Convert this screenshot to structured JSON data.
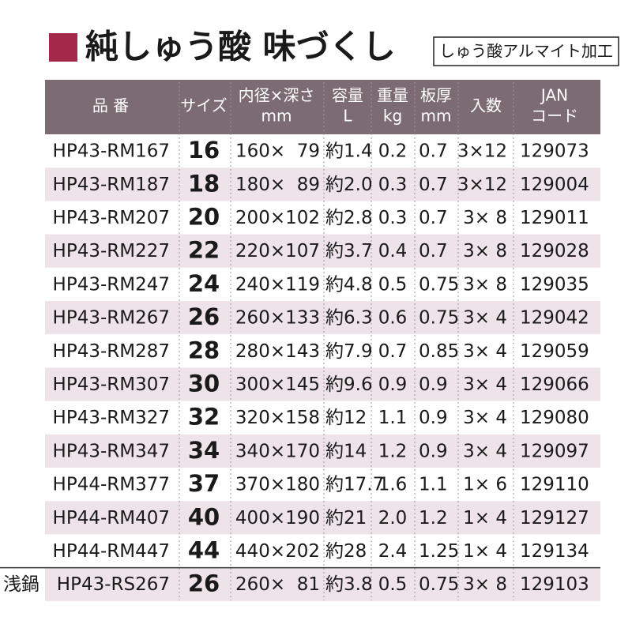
{
  "header": {
    "title": "純しゅう酸 味づくし",
    "badge": "しゅう酸アルマイト加工"
  },
  "table": {
    "header": [
      [
        "品 番"
      ],
      [
        "サイズ"
      ],
      [
        "内径×深さ",
        "mm"
      ],
      [
        "容量",
        "L"
      ],
      [
        "重量",
        "kg"
      ],
      [
        "板厚",
        "mm"
      ],
      [
        "入数"
      ],
      [
        "JAN",
        "コード"
      ]
    ],
    "rows": [
      [
        "HP43-RM167",
        "16",
        "160×  79",
        "約1.4",
        "0.2",
        "0.7",
        "3×12",
        "129073"
      ],
      [
        "HP43-RM187",
        "18",
        "180×  89",
        "約2.0",
        "0.3",
        "0.7",
        "3×12",
        "129004"
      ],
      [
        "HP43-RM207",
        "20",
        "200×102",
        "約2.8",
        "0.3",
        "0.7",
        "3× 8",
        "129011"
      ],
      [
        "HP43-RM227",
        "22",
        "220×107",
        "約3.7",
        "0.4",
        "0.7",
        "3× 8",
        "129028"
      ],
      [
        "HP43-RM247",
        "24",
        "240×119",
        "約4.8",
        "0.5",
        "0.75",
        "3× 8",
        "129035"
      ],
      [
        "HP43-RM267",
        "26",
        "260×133",
        "約6.3",
        "0.6",
        "0.75",
        "3× 4",
        "129042"
      ],
      [
        "HP43-RM287",
        "28",
        "280×143",
        "約7.9",
        "0.7",
        "0.85",
        "3× 4",
        "129059"
      ],
      [
        "HP43-RM307",
        "30",
        "300×145",
        "約9.6",
        "0.9",
        "0.9",
        "3× 4",
        "129066"
      ],
      [
        "HP43-RM327",
        "32",
        "320×158",
        "約12",
        "1.1",
        "0.9",
        "3× 4",
        "129080"
      ],
      [
        "HP43-RM347",
        "34",
        "340×170",
        "約14",
        "1.2",
        "0.9",
        "3× 4",
        "129097"
      ],
      [
        "HP44-RM377",
        "37",
        "370×180",
        "約17.7",
        "1.6",
        "1.1",
        "1× 6",
        "129110"
      ],
      [
        "HP44-RM407",
        "40",
        "400×190",
        "約21",
        "2.0",
        "1.2",
        "1× 4",
        "129127"
      ],
      [
        "HP44-RM447",
        "44",
        "440×202",
        "約28",
        "2.4",
        "1.25",
        "1× 4",
        "129134"
      ],
      [
        "HP43-RS267",
        "26",
        "260×  81",
        "約3.8",
        "0.5",
        "0.75",
        "3× 8",
        "129103"
      ]
    ],
    "side_label": "浅鍋"
  }
}
